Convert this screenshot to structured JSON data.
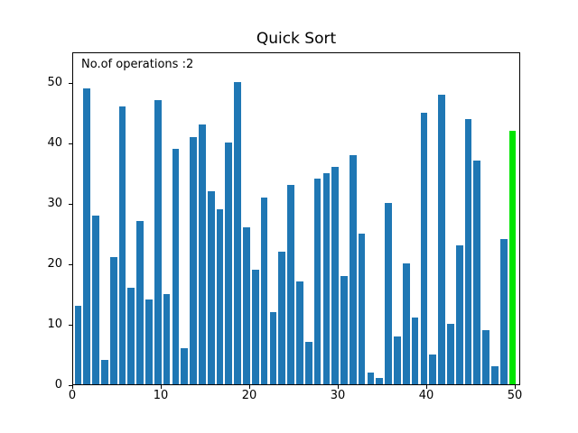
{
  "title": "Quick Sort",
  "annotation": "No.of operations :2",
  "chart_data": {
    "type": "bar",
    "title": "Quick Sort",
    "annotation": "No.of operations :2",
    "xlabel": "",
    "ylabel": "",
    "values": [
      13,
      49,
      28,
      4,
      21,
      46,
      16,
      27,
      14,
      47,
      15,
      39,
      6,
      41,
      43,
      32,
      29,
      40,
      50,
      26,
      19,
      31,
      12,
      22,
      33,
      17,
      7,
      34,
      35,
      36,
      18,
      38,
      25,
      2,
      1,
      30,
      8,
      20,
      11,
      45,
      5,
      48,
      10,
      23,
      44,
      37,
      9,
      3,
      24,
      42
    ],
    "highlight_index": 49,
    "bar_color": "#1f77b4",
    "highlight_color": "#00e400",
    "xticks": [
      0,
      10,
      20,
      30,
      40,
      50
    ],
    "yticks": [
      0,
      10,
      20,
      30,
      40,
      50
    ],
    "xlim": [
      0,
      50.6
    ],
    "ylim": [
      0,
      55.1
    ],
    "grid": false,
    "legend": "none",
    "background_color": "#ffffff"
  }
}
